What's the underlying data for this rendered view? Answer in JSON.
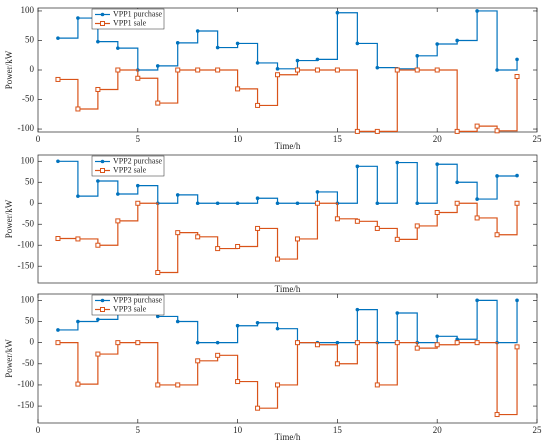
{
  "chart_data": [
    {
      "type": "stairs",
      "xlabel": "Time/h",
      "ylabel": "Power/kW",
      "xlim": [
        0,
        25
      ],
      "xticks": [
        0,
        5,
        10,
        15,
        20,
        25
      ],
      "ylim": [
        -105,
        105
      ],
      "yticks": [
        -100,
        -50,
        0,
        50,
        100
      ],
      "x": [
        1,
        2,
        3,
        4,
        5,
        6,
        7,
        8,
        9,
        10,
        11,
        12,
        13,
        14,
        15,
        16,
        17,
        18,
        19,
        20,
        21,
        22,
        23,
        24
      ],
      "series": [
        {
          "name": "VPP1 purchase",
          "color": "#0072BD",
          "marker": "circle",
          "values": [
            54,
            88,
            48,
            37,
            0,
            7,
            46,
            66,
            38,
            45,
            12,
            2,
            16,
            18,
            97,
            45,
            4,
            2,
            24,
            44,
            50,
            100,
            0,
            18
          ]
        },
        {
          "name": "VPP1 sale",
          "color": "#D95319",
          "marker": "square",
          "values": [
            -16,
            -66,
            -33,
            0,
            -14,
            -56,
            0,
            0,
            0,
            -32,
            -60,
            -8,
            0,
            0,
            0,
            -104,
            -104,
            0,
            0,
            0,
            -104,
            -95,
            -103,
            -11
          ]
        }
      ]
    },
    {
      "type": "stairs",
      "xlabel": "Time/h",
      "ylabel": "Power/kW",
      "xlim": [
        0,
        25
      ],
      "ylim": [
        -190,
        115
      ],
      "yticks": [
        -150,
        -100,
        -50,
        0,
        50,
        100
      ],
      "x": [
        1,
        2,
        3,
        4,
        5,
        6,
        7,
        8,
        9,
        10,
        11,
        12,
        13,
        14,
        15,
        16,
        17,
        18,
        19,
        20,
        21,
        22,
        23,
        24
      ],
      "series": [
        {
          "name": "VPP2 purchase",
          "color": "#0072BD",
          "marker": "circle",
          "values": [
            100,
            17,
            53,
            22,
            42,
            0,
            20,
            0,
            0,
            0,
            12,
            0,
            0,
            27,
            0,
            88,
            0,
            97,
            0,
            93,
            50,
            10,
            65,
            66
          ]
        },
        {
          "name": "VPP2 sale",
          "color": "#D95319",
          "marker": "square",
          "values": [
            -84,
            -85,
            -100,
            -42,
            0,
            -165,
            -70,
            -80,
            -108,
            -103,
            -60,
            -133,
            -85,
            0,
            -37,
            -43,
            -60,
            -86,
            -54,
            -22,
            0,
            -35,
            -75,
            0
          ]
        }
      ]
    },
    {
      "type": "stairs",
      "xlabel": "Time/h",
      "ylabel": "Power/kW",
      "xlim": [
        0,
        25
      ],
      "xticks": [
        0,
        5,
        10,
        15,
        20,
        25
      ],
      "ylim": [
        -190,
        115
      ],
      "yticks": [
        -150,
        -100,
        -50,
        0,
        50,
        100
      ],
      "x": [
        1,
        2,
        3,
        4,
        5,
        6,
        7,
        8,
        9,
        10,
        11,
        12,
        13,
        14,
        15,
        16,
        17,
        18,
        19,
        20,
        21,
        22,
        23,
        24
      ],
      "series": [
        {
          "name": "VPP3 purchase",
          "color": "#0072BD",
          "marker": "circle",
          "values": [
            30,
            50,
            55,
            77,
            73,
            62,
            50,
            0,
            0,
            40,
            47,
            33,
            0,
            0,
            0,
            78,
            0,
            70,
            0,
            15,
            8,
            100,
            0,
            100
          ]
        },
        {
          "name": "VPP3 sale",
          "color": "#D95319",
          "marker": "square",
          "values": [
            0,
            -98,
            -27,
            0,
            0,
            -100,
            -100,
            -43,
            -30,
            -92,
            -155,
            -100,
            0,
            -5,
            -50,
            0,
            -100,
            0,
            -13,
            -5,
            0,
            0,
            -170,
            -10
          ]
        }
      ]
    }
  ]
}
